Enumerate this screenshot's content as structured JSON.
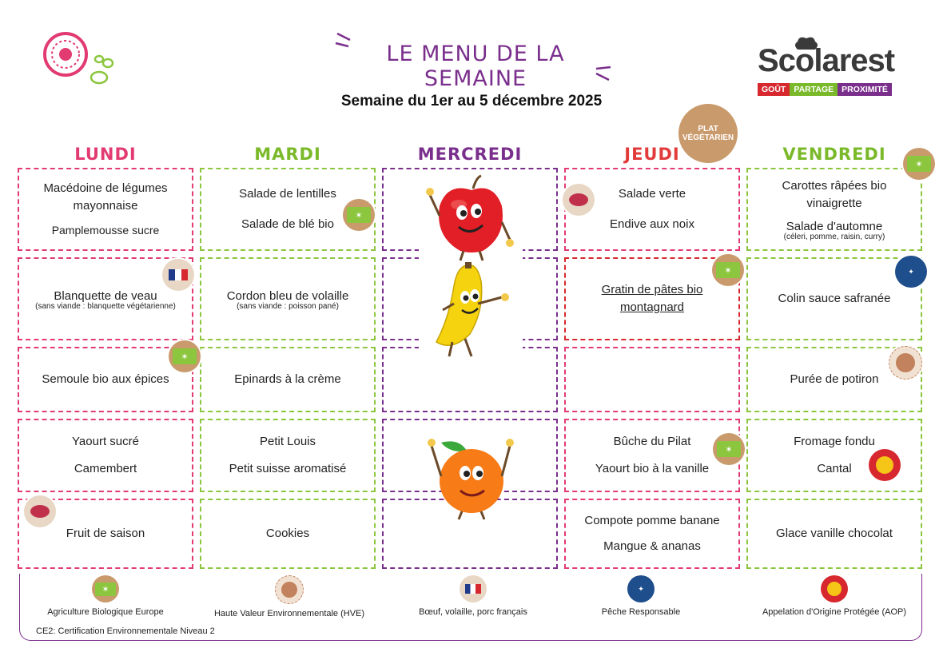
{
  "header": {
    "title": "LE MENU DE LA SEMAINE",
    "week": "Semaine du 1er au 5 décembre 2025",
    "brand": "Scolarest",
    "tagline": [
      "GOÛT",
      "PARTAGE",
      "PROXIMITÉ"
    ]
  },
  "days": [
    "LUNDI",
    "MARDI",
    "MERCREDI",
    "JEUDI",
    "VENDREDI"
  ],
  "veggie_badge": "PLAT VÉGÉTARIEN",
  "menu": {
    "lundi": {
      "r1": {
        "a": "Macédoine de légumes mayonnaise",
        "b": "Pamplemousse sucre"
      },
      "r2": {
        "a": "Blanquette de veau",
        "note": "(sans viande : blanquette végétarienne)"
      },
      "r3": {
        "a": "Semoule bio aux épices"
      },
      "r4": {
        "a": "Yaourt sucré",
        "b": "Camembert"
      },
      "r5": {
        "a": "Fruit de saison"
      }
    },
    "mardi": {
      "r1": {
        "a": "Salade de lentilles",
        "b": "Salade de blé bio"
      },
      "r2": {
        "a": "Cordon bleu de volaille",
        "note": "(sans viande : poisson pané)"
      },
      "r3": {
        "a": "Epinards à la crème"
      },
      "r4": {
        "a": "Petit Louis",
        "b": "Petit suisse aromatisé"
      },
      "r5": {
        "a": "Cookies"
      }
    },
    "jeudi": {
      "r1": {
        "a": "Salade verte",
        "b": "Endive aux noix"
      },
      "r2": {
        "a": "Gratin de pâtes bio montagnard"
      },
      "r4": {
        "a": "Bûche du Pilat",
        "b": "Yaourt bio à la vanille"
      },
      "r5": {
        "a": "Compote pomme banane",
        "b": "Mangue & ananas"
      }
    },
    "vendredi": {
      "r1": {
        "a": "Carottes râpées bio vinaigrette",
        "b": "Salade d'automne",
        "note": "(céleri, pomme, raisin, curry)"
      },
      "r2": {
        "a": "Colin sauce safranée"
      },
      "r3": {
        "a": "Purée de potiron"
      },
      "r4": {
        "a": "Fromage fondu",
        "b": "Cantal"
      },
      "r5": {
        "a": "Glace vanille chocolat"
      }
    }
  },
  "legend": {
    "items": [
      "Agriculture Biologique Europe",
      "Haute Valeur Environnementale (HVE)",
      "Bœuf, volaille, porc français",
      "Pêche Responsable",
      "Appelation d'Origine Protégée (AOP)"
    ],
    "note": "CE2: Certification Environnementale Niveau 2"
  },
  "colors": {
    "pink": "#e23b72",
    "green": "#8cc63f",
    "purple": "#7a2f8c",
    "red": "#d7282f"
  }
}
